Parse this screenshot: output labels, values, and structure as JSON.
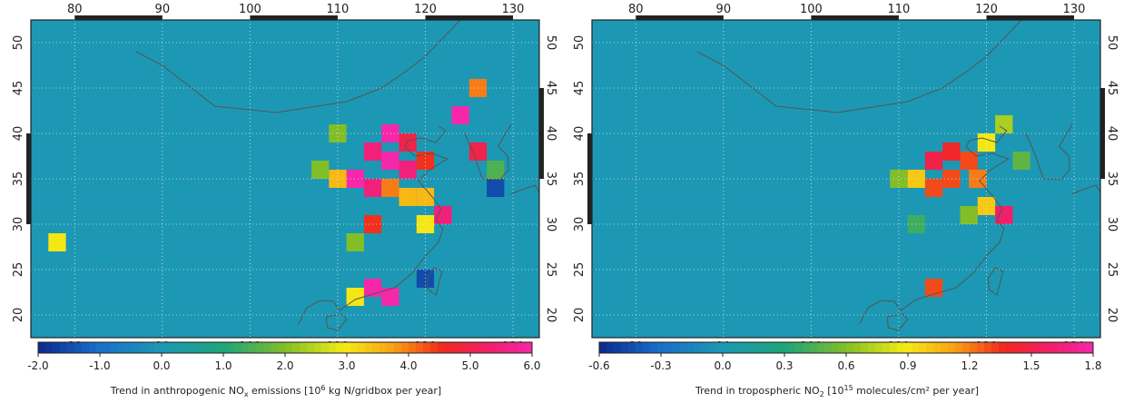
{
  "maps": [
    {
      "lon_labels": [
        "80",
        "90",
        "100",
        "110",
        "120",
        "130"
      ],
      "lat_labels": [
        "50",
        "45",
        "40",
        "35",
        "30",
        "25",
        "20"
      ],
      "colorbar": {
        "min": -2.0,
        "max": 6.0,
        "tick_labels": [
          "-2.0",
          "-1.0",
          "0.0",
          "1.0",
          "2.0",
          "3.0",
          "4.0",
          "5.0",
          "6.0"
        ],
        "caption_pre": "Trend in anthropogenic NO",
        "caption_sub": "x",
        "caption_mid": " emissions [10",
        "caption_sup": "6",
        "caption_post": " kg N/gridbox per year]"
      },
      "background_color": "#1c98b4",
      "hotspots": [
        {
          "lon": 126,
          "lat": 45,
          "value": 4.0
        },
        {
          "lon": 124,
          "lat": 42,
          "value": 6.0
        },
        {
          "lon": 116,
          "lat": 40,
          "value": 6.0
        },
        {
          "lon": 118,
          "lat": 39,
          "value": 5.0
        },
        {
          "lon": 114,
          "lat": 38,
          "value": 5.5
        },
        {
          "lon": 116,
          "lat": 37,
          "value": 6.0
        },
        {
          "lon": 118,
          "lat": 36,
          "value": 5.5
        },
        {
          "lon": 120,
          "lat": 37,
          "value": 4.5
        },
        {
          "lon": 112,
          "lat": 35,
          "value": 6.0
        },
        {
          "lon": 114,
          "lat": 34,
          "value": 5.5
        },
        {
          "lon": 116,
          "lat": 34,
          "value": 4.0
        },
        {
          "lon": 118,
          "lat": 33,
          "value": 3.5
        },
        {
          "lon": 120,
          "lat": 33,
          "value": 3.5
        },
        {
          "lon": 122,
          "lat": 31,
          "value": 5.5
        },
        {
          "lon": 110,
          "lat": 35,
          "value": 3.5
        },
        {
          "lon": 114,
          "lat": 30,
          "value": 4.5
        },
        {
          "lon": 120,
          "lat": 30,
          "value": 3.0
        },
        {
          "lon": 114,
          "lat": 23,
          "value": 6.0
        },
        {
          "lon": 116,
          "lat": 22,
          "value": 6.0
        },
        {
          "lon": 126,
          "lat": 38,
          "value": 5.0
        },
        {
          "lon": 128,
          "lat": 36,
          "value": 1.5
        },
        {
          "lon": 128,
          "lat": 34,
          "value": -1.5
        },
        {
          "lon": 120,
          "lat": 24,
          "value": -1.5
        },
        {
          "lon": 110,
          "lat": 40,
          "value": 2.0
        },
        {
          "lon": 108,
          "lat": 36,
          "value": 2.0
        },
        {
          "lon": 112,
          "lat": 28,
          "value": 2.0
        },
        {
          "lon": 112,
          "lat": 22,
          "value": 3.0
        },
        {
          "lon": 78,
          "lat": 28,
          "value": 3.0
        }
      ]
    },
    {
      "lon_labels": [
        "80",
        "90",
        "100",
        "110",
        "120",
        "130"
      ],
      "lat_labels": [
        "50",
        "45",
        "40",
        "35",
        "30",
        "25",
        "20"
      ],
      "colorbar": {
        "min": -0.6,
        "max": 1.8,
        "tick_labels": [
          "-0.6",
          "-0.3",
          "0.0",
          "0.3",
          "0.6",
          "0.9",
          "1.2",
          "1.5",
          "1.8"
        ],
        "caption_pre": "Trend in tropospheric NO",
        "caption_sub": "2",
        "caption_mid": " [10",
        "caption_sup": "15",
        "caption_post": " molecules/cm² per year]"
      },
      "background_color": "#1c98b4",
      "hotspots": [
        {
          "lon": 114,
          "lat": 37,
          "value": 1.5
        },
        {
          "lon": 116,
          "lat": 38,
          "value": 1.4
        },
        {
          "lon": 118,
          "lat": 37,
          "value": 1.3
        },
        {
          "lon": 116,
          "lat": 35,
          "value": 1.3
        },
        {
          "lon": 114,
          "lat": 34,
          "value": 1.3
        },
        {
          "lon": 119,
          "lat": 35,
          "value": 1.2
        },
        {
          "lon": 122,
          "lat": 31,
          "value": 1.6
        },
        {
          "lon": 120,
          "lat": 32,
          "value": 1.0
        },
        {
          "lon": 112,
          "lat": 35,
          "value": 1.0
        },
        {
          "lon": 120,
          "lat": 39,
          "value": 0.9
        },
        {
          "lon": 114,
          "lat": 23,
          "value": 1.3
        },
        {
          "lon": 122,
          "lat": 41,
          "value": 0.7
        },
        {
          "lon": 110,
          "lat": 35,
          "value": 0.6
        },
        {
          "lon": 118,
          "lat": 31,
          "value": 0.6
        },
        {
          "lon": 124,
          "lat": 37,
          "value": 0.5
        },
        {
          "lon": 112,
          "lat": 30,
          "value": 0.4
        }
      ]
    }
  ]
}
